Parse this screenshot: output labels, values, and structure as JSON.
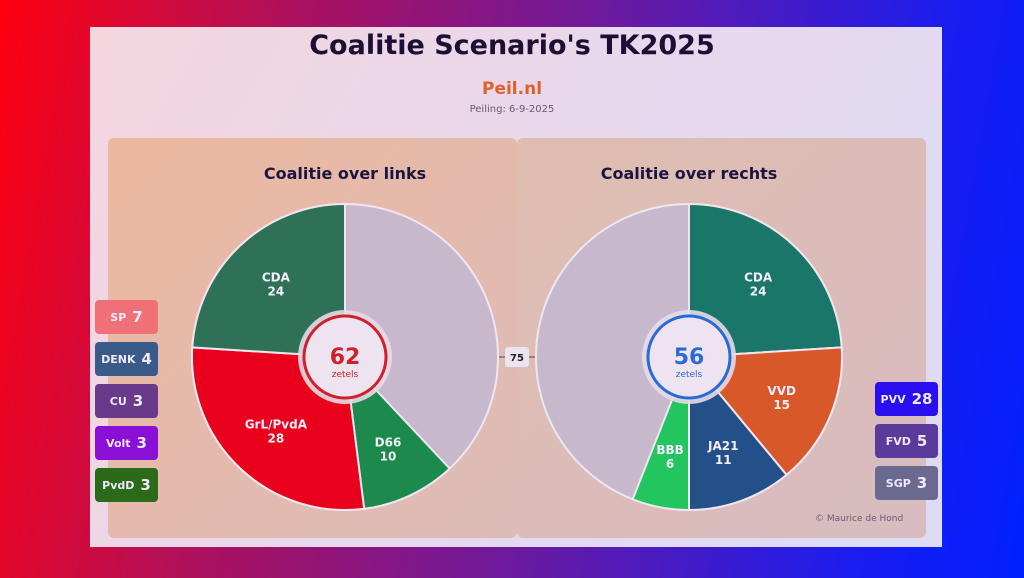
{
  "title": "Coalitie Scenario's TK2025",
  "source": "Peil.nl",
  "date": "Peiling: 6-9-2025",
  "majority": "75",
  "copyright": "© Maurice de Hond",
  "chart_data": [
    {
      "type": "pie",
      "title": "Coalitie over links",
      "total": "62",
      "total_label": "zetels",
      "accent": "#d0202c",
      "slices": [
        {
          "name": "D66",
          "value": 10,
          "color": "#1b8a4c"
        },
        {
          "name": "GrL/PvdA",
          "value": 28,
          "color": "#e8001c"
        },
        {
          "name": "CDA",
          "value": 24,
          "color": "#2f7157"
        }
      ]
    },
    {
      "type": "pie",
      "title": "Coalitie over rechts",
      "total": "56",
      "total_label": "zetels",
      "accent": "#2a6ad8",
      "slices": [
        {
          "name": "CDA",
          "value": 24,
          "color": "#1a7668"
        },
        {
          "name": "VVD",
          "value": 15,
          "color": "#d9582a"
        },
        {
          "name": "JA21",
          "value": 11,
          "color": "#24508a"
        },
        {
          "name": "BBB",
          "value": 6,
          "color": "#22c55e"
        }
      ]
    }
  ],
  "left_parties": [
    {
      "name": "SP",
      "seats": "7",
      "color": "#f07078"
    },
    {
      "name": "DENK",
      "seats": "4",
      "color": "#3a5a8a"
    },
    {
      "name": "CU",
      "seats": "3",
      "color": "#6a3a8a"
    },
    {
      "name": "Volt",
      "seats": "3",
      "color": "#8a10d8"
    },
    {
      "name": "PvdD",
      "seats": "3",
      "color": "#2a6a18"
    }
  ],
  "right_parties": [
    {
      "name": "PVV",
      "seats": "28",
      "color": "#2a10f0"
    },
    {
      "name": "FVD",
      "seats": "5",
      "color": "#5a3a9a"
    },
    {
      "name": "SGP",
      "seats": "3",
      "color": "#6a6a90"
    }
  ]
}
